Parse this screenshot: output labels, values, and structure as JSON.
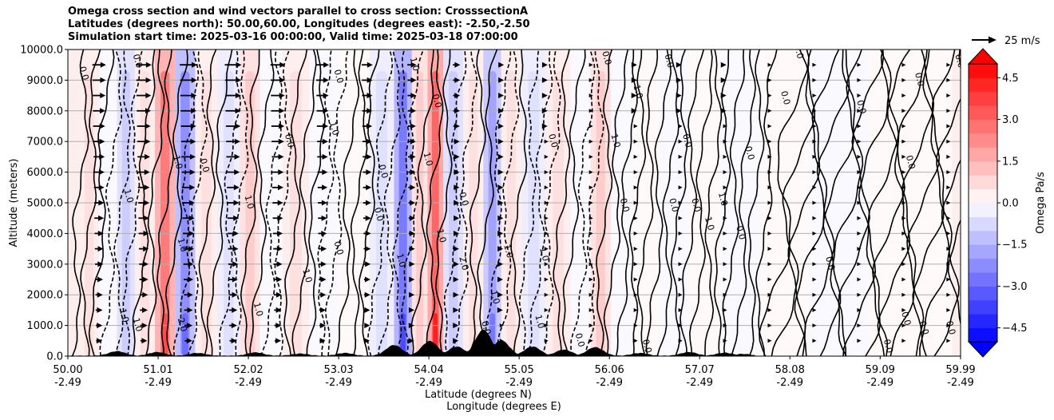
{
  "chart_data": {
    "type": "contour",
    "title_lines": [
      "Omega cross section and wind vectors parallel to cross section: CrosssectionA",
      "Latitudes (degrees north): 50.00,60.00, Longitudes (degrees east): -2.50,-2.50",
      "Simulation start time: 2025-03-16 00:00:00, Valid time: 2025-03-18 07:00:00"
    ],
    "ylabel": "Altitude (meters)",
    "xlabel_lines": [
      "Latitude (degrees N)",
      "Longitude (degrees E)"
    ],
    "ylim": [
      0,
      10000
    ],
    "xlim": [
      50.0,
      59.99
    ],
    "yticks": [
      0,
      1000,
      2000,
      3000,
      4000,
      5000,
      6000,
      7000,
      8000,
      9000,
      10000
    ],
    "ytick_labels": [
      "0.0",
      "1000.0",
      "2000.0",
      "3000.0",
      "4000.0",
      "5000.0",
      "6000.0",
      "7000.0",
      "8000.0",
      "9000.0",
      "10000.0"
    ],
    "xticks": [
      50.0,
      51.01,
      52.02,
      53.03,
      54.04,
      55.05,
      56.06,
      57.07,
      58.08,
      59.09,
      59.99
    ],
    "xtick_lat_labels": [
      "50.00",
      "51.01",
      "52.02",
      "53.03",
      "54.04",
      "55.05",
      "56.06",
      "57.07",
      "58.08",
      "59.09",
      "59.99"
    ],
    "xtick_lon_labels": [
      "-2.49",
      "-2.49",
      "-2.49",
      "-2.49",
      "-2.49",
      "-2.49",
      "-2.49",
      "-2.49",
      "-2.49",
      "-2.49",
      "-2.49"
    ],
    "grid": "horizontal",
    "colorbar": {
      "label": "Omega Pa/s",
      "range": [
        -5.0,
        5.0
      ],
      "ticks": [
        -4.5,
        -3.0,
        -1.5,
        0.0,
        1.5,
        3.0,
        4.5
      ],
      "tick_labels": [
        "−4.5",
        "−3.0",
        "−1.5",
        "0.0",
        "1.5",
        "3.0",
        "4.5"
      ],
      "colormap": "bwr",
      "extend": "both"
    },
    "quiver_key": {
      "label": "25 m/s",
      "speed": 25
    },
    "omega_bands": [
      {
        "lat": 50.25,
        "value": 0.6
      },
      {
        "lat": 50.45,
        "value": -0.4
      },
      {
        "lat": 50.65,
        "value": -1.2
      },
      {
        "lat": 50.85,
        "value": 0.9
      },
      {
        "lat": 51.1,
        "value": 3.2
      },
      {
        "lat": 51.3,
        "value": -2.6
      },
      {
        "lat": 51.55,
        "value": 0.8
      },
      {
        "lat": 51.8,
        "value": -0.7
      },
      {
        "lat": 52.05,
        "value": 1.4
      },
      {
        "lat": 52.25,
        "value": -0.5
      },
      {
        "lat": 52.55,
        "value": 0.7
      },
      {
        "lat": 52.85,
        "value": -0.4
      },
      {
        "lat": 53.2,
        "value": 0.5
      },
      {
        "lat": 53.55,
        "value": -0.8
      },
      {
        "lat": 53.75,
        "value": -3.2
      },
      {
        "lat": 53.95,
        "value": 1.2
      },
      {
        "lat": 54.1,
        "value": 4.0
      },
      {
        "lat": 54.3,
        "value": -1.5
      },
      {
        "lat": 54.55,
        "value": 0.6
      },
      {
        "lat": 54.75,
        "value": -2.4
      },
      {
        "lat": 54.95,
        "value": 0.9
      },
      {
        "lat": 55.2,
        "value": -0.9
      },
      {
        "lat": 55.5,
        "value": 0.6
      },
      {
        "lat": 55.75,
        "value": -0.5
      },
      {
        "lat": 55.95,
        "value": 1.1
      },
      {
        "lat": 56.2,
        "value": -0.3
      },
      {
        "lat": 56.45,
        "value": 0.4
      },
      {
        "lat": 56.8,
        "value": -0.3
      },
      {
        "lat": 57.1,
        "value": 0.4
      },
      {
        "lat": 57.5,
        "value": -0.3
      },
      {
        "lat": 58.0,
        "value": 0.2
      },
      {
        "lat": 58.6,
        "value": -0.2
      },
      {
        "lat": 59.3,
        "value": 0.3
      },
      {
        "lat": 59.8,
        "value": 0.2
      }
    ],
    "contour_labels": [
      {
        "lat": 50.15,
        "alt": 9200,
        "text": "0.0"
      },
      {
        "lat": 50.75,
        "alt": 9600,
        "text": "0.0"
      },
      {
        "lat": 50.65,
        "alt": 5200,
        "text": "1.0"
      },
      {
        "lat": 50.6,
        "alt": 1300,
        "text": "1.0"
      },
      {
        "lat": 50.75,
        "alt": 1000,
        "text": "1.0"
      },
      {
        "lat": 51.2,
        "alt": 6300,
        "text": "1.0"
      },
      {
        "lat": 51.25,
        "alt": 1000,
        "text": "2.0"
      },
      {
        "lat": 51.5,
        "alt": 6200,
        "text": "0.0"
      },
      {
        "lat": 51.25,
        "alt": 3600,
        "text": "1.0"
      },
      {
        "lat": 52.0,
        "alt": 5000,
        "text": "1.0"
      },
      {
        "lat": 52.1,
        "alt": 1500,
        "text": "1.0"
      },
      {
        "lat": 52.45,
        "alt": 7000,
        "text": "0.0"
      },
      {
        "lat": 52.65,
        "alt": 2600,
        "text": "1.0"
      },
      {
        "lat": 53.0,
        "alt": 3500,
        "text": "0.0"
      },
      {
        "lat": 53.0,
        "alt": 9100,
        "text": "0.0"
      },
      {
        "lat": 52.95,
        "alt": 7400,
        "text": "1.0"
      },
      {
        "lat": 53.5,
        "alt": 6000,
        "text": "0.0"
      },
      {
        "lat": 53.45,
        "alt": 4600,
        "text": "0.0"
      },
      {
        "lat": 53.85,
        "alt": 9500,
        "text": "1.0"
      },
      {
        "lat": 53.7,
        "alt": 3100,
        "text": "1.0"
      },
      {
        "lat": 54.0,
        "alt": 6400,
        "text": "1.0"
      },
      {
        "lat": 54.1,
        "alt": 8300,
        "text": "0.0"
      },
      {
        "lat": 54.15,
        "alt": 3900,
        "text": "1.0"
      },
      {
        "lat": 54.4,
        "alt": 3000,
        "text": "2.0"
      },
      {
        "lat": 54.4,
        "alt": 5100,
        "text": "0.0"
      },
      {
        "lat": 54.9,
        "alt": 3400,
        "text": "1.0"
      },
      {
        "lat": 54.75,
        "alt": 1900,
        "text": "1.0"
      },
      {
        "lat": 55.3,
        "alt": 3300,
        "text": "1.0"
      },
      {
        "lat": 55.25,
        "alt": 1100,
        "text": "1.0"
      },
      {
        "lat": 55.4,
        "alt": 7000,
        "text": "0.0"
      },
      {
        "lat": 56.0,
        "alt": 9700,
        "text": "0.0"
      },
      {
        "lat": 56.1,
        "alt": 7000,
        "text": "1.0"
      },
      {
        "lat": 56.2,
        "alt": 4900,
        "text": "0.0"
      },
      {
        "lat": 56.35,
        "alt": 8600,
        "text": "1.0"
      },
      {
        "lat": 56.7,
        "alt": 9600,
        "text": "0.0"
      },
      {
        "lat": 56.75,
        "alt": 4900,
        "text": "0.0"
      },
      {
        "lat": 56.9,
        "alt": 7000,
        "text": "0.0"
      },
      {
        "lat": 57.0,
        "alt": 4900,
        "text": "0.0"
      },
      {
        "lat": 57.15,
        "alt": 4300,
        "text": "1.0"
      },
      {
        "lat": 57.3,
        "alt": 5100,
        "text": "1.0"
      },
      {
        "lat": 57.5,
        "alt": 4000,
        "text": "0.0"
      },
      {
        "lat": 57.6,
        "alt": 6600,
        "text": "0.0"
      },
      {
        "lat": 58.15,
        "alt": 9900,
        "text": "0.0"
      },
      {
        "lat": 58.0,
        "alt": 8400,
        "text": "0.0"
      },
      {
        "lat": 58.5,
        "alt": 3000,
        "text": "0.0"
      },
      {
        "lat": 58.85,
        "alt": 8100,
        "text": "0.0"
      },
      {
        "lat": 59.4,
        "alt": 6300,
        "text": "0.0"
      },
      {
        "lat": 59.5,
        "alt": 9000,
        "text": "0.0"
      },
      {
        "lat": 59.55,
        "alt": 900,
        "text": "0.0"
      },
      {
        "lat": 59.85,
        "alt": 900,
        "text": "0.0"
      },
      {
        "lat": 59.95,
        "alt": 9600,
        "text": "0.0"
      },
      {
        "lat": 59.35,
        "alt": 1200,
        "text": "0.0"
      },
      {
        "lat": 59.15,
        "alt": 300,
        "text": "0.0"
      },
      {
        "lat": 56.45,
        "alt": 300,
        "text": "0.0"
      },
      {
        "lat": 55.7,
        "alt": 500,
        "text": "0.0"
      },
      {
        "lat": 54.65,
        "alt": 900,
        "text": "0.0"
      }
    ],
    "terrain_peaks": [
      {
        "lat": 50.55,
        "alt": 150
      },
      {
        "lat": 51.0,
        "alt": 120
      },
      {
        "lat": 51.45,
        "alt": 90
      },
      {
        "lat": 52.1,
        "alt": 110
      },
      {
        "lat": 52.6,
        "alt": 70
      },
      {
        "lat": 53.1,
        "alt": 90
      },
      {
        "lat": 53.65,
        "alt": 350
      },
      {
        "lat": 54.05,
        "alt": 480
      },
      {
        "lat": 54.35,
        "alt": 300
      },
      {
        "lat": 54.65,
        "alt": 850
      },
      {
        "lat": 54.85,
        "alt": 500
      },
      {
        "lat": 55.2,
        "alt": 300
      },
      {
        "lat": 55.55,
        "alt": 200
      },
      {
        "lat": 55.9,
        "alt": 280
      },
      {
        "lat": 56.4,
        "alt": 90
      },
      {
        "lat": 56.95,
        "alt": 120
      },
      {
        "lat": 57.35,
        "alt": 100
      },
      {
        "lat": 57.55,
        "alt": 60
      }
    ]
  }
}
